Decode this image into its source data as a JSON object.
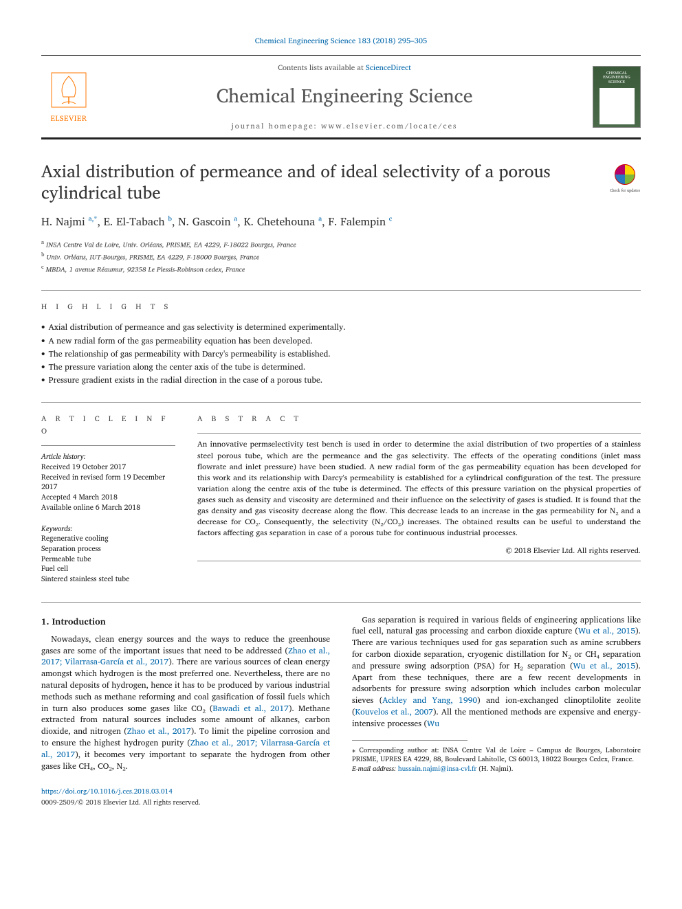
{
  "top_journal_ref": "Chemical Engineering Science 183 (2018) 295–305",
  "header": {
    "contents_prefix": "Contents lists available at ",
    "contents_link": "ScienceDirect",
    "journal_name": "Chemical Engineering Science",
    "homepage_prefix": "journal homepage: ",
    "homepage_url": "www.elsevier.com/locate/ces",
    "publisher": "ELSEVIER",
    "cover_title": "CHEMICAL ENGINEERING SCIENCE"
  },
  "article": {
    "title": "Axial distribution of permeance and of ideal selectivity of a porous cylindrical tube",
    "check_label": "Check for updates",
    "authors_html": "H. Najmi <sup>a,*</sup>, E. El-Tabach <sup>b</sup>, N. Gascoin <sup>a</sup>, K. Chetehouna <sup>a</sup>, F. Falempin <sup>c</sup>",
    "affiliations": [
      "a INSA Centre Val de Loire, Univ. Orléans, PRISME, EA 4229, F-18022 Bourges, France",
      "b Univ. Orléans, IUT-Bourges, PRISME, EA 4229, F-18000 Bourges, France",
      "c MBDA, 1 avenue Réaumur, 92358 Le Plessis-Robinson cedex, France"
    ]
  },
  "highlights": {
    "heading": "H I G H L I G H T S",
    "items": [
      "Axial distribution of permeance and gas selectivity is determined experimentally.",
      "A new radial form of the gas permeability equation has been developed.",
      "The relationship of gas permeability with Darcy's permeability is established.",
      "The pressure variation along the center axis of the tube is determined.",
      "Pressure gradient exists in the radial direction in the case of a porous tube."
    ]
  },
  "article_info": {
    "heading": "A R T I C L E   I N F O",
    "history_label": "Article history:",
    "history": [
      "Received 19 October 2017",
      "Received in revised form 19 December 2017",
      "Accepted 4 March 2018",
      "Available online 6 March 2018"
    ],
    "keywords_label": "Keywords:",
    "keywords": [
      "Regenerative cooling",
      "Separation process",
      "Permeable tube",
      "Fuel cell",
      "Sintered stainless steel tube"
    ]
  },
  "abstract": {
    "heading": "A B S T R A C T",
    "text": "An innovative permselectivity test bench is used in order to determine the axial distribution of two properties of a stainless steel porous tube, which are the permeance and the gas selectivity. The effects of the operating conditions (inlet mass flowrate and inlet pressure) have been studied. A new radial form of the gas permeability equation has been developed for this work and its relationship with Darcy's permeability is established for a cylindrical configuration of the test. The pressure variation along the centre axis of the tube is determined. The effects of this pressure variation on the physical properties of gases such as density and viscosity are determined and their influence on the selectivity of gases is studied. It is found that the gas density and gas viscosity decrease along the flow. This decrease leads to an increase in the gas permeability for N₂ and a decrease for CO₂. Consequently, the selectivity (N₂/CO₂) increases. The obtained results can be useful to understand the factors affecting gas separation in case of a porous tube for continuous industrial processes.",
    "copyright": "© 2018 Elsevier Ltd. All rights reserved."
  },
  "body": {
    "section_number": "1.",
    "section_title": "Introduction",
    "col1_para1_a": "Nowadays, clean energy sources and the ways to reduce the greenhouse gases are some of the important issues that need to be addressed (",
    "col1_cite1": "Zhao et al., 2017; Vilarrasa-García et al., 2017",
    "col1_para1_b": "). There are various sources of clean energy amongst which hydrogen is the most preferred one. Nevertheless, there are no natural deposits of hydrogen, hence it has to be produced by various industrial methods such as methane reforming and coal gasification of fossil fuels which in turn also produces some gases like CO₂ (",
    "col1_cite2": "Bawadi et al., 2017",
    "col1_para1_c": "). Methane extracted from natural sources includes some",
    "col2_para1_a": "amount of alkanes, carbon dioxide, and nitrogen (",
    "col2_cite1": "Zhao et al., 2017",
    "col2_para1_b": "). To limit the pipeline corrosion and to ensure the highest hydrogen purity (",
    "col2_cite2": "Zhao et al., 2017; Vilarrasa-García et al., 2017",
    "col2_para1_c": "), it becomes very important to separate the hydrogen from other gases like CH₄, CO₂, N₂.",
    "col2_para2_a": "Gas separation is required in various fields of engineering applications like fuel cell, natural gas processing and carbon dioxide capture (",
    "col2_cite3": "Wu et al., 2015",
    "col2_para2_b": "). There are various techniques used for gas separation such as amine scrubbers for carbon dioxide separation, cryogenic distillation for N₂ or CH₄ separation and pressure swing adsorption (PSA) for H₂ separation (",
    "col2_cite4": "Wu et al., 2015",
    "col2_para2_c": "). Apart from these techniques, there are a few recent developments in adsorbents for pressure swing adsorption which includes carbon molecular sieves (",
    "col2_cite5": "Ackley and Yang, 1990",
    "col2_para2_d": ") and ion-exchanged clinoptilolite zeolite (",
    "col2_cite6": "Kouvelos et al., 2007",
    "col2_para2_e": "). All the mentioned methods are expensive and energy-intensive processes (",
    "col2_cite7": "Wu"
  },
  "footnote": {
    "corresponding": "⁎ Corresponding author at: INSA Centre Val de Loire – Campus de Bourges, Laboratoire PRISME, UPRES EA 4229, 88, Boulevard Lahitolle, CS 60013, 18022 Bourges Cedex, France.",
    "email_label": "E-mail address: ",
    "email": "hussain.najmi@insa-cvl.fr",
    "email_who": " (H. Najmi)."
  },
  "footer": {
    "doi": "https://doi.org/10.1016/j.ces.2018.03.014",
    "issn_line": "0009-2509/© 2018 Elsevier Ltd. All rights reserved."
  },
  "colors": {
    "link": "#0066aa",
    "elsevier_orange": "#ff7700",
    "text": "#1a1a1a",
    "rule": "#888888"
  }
}
